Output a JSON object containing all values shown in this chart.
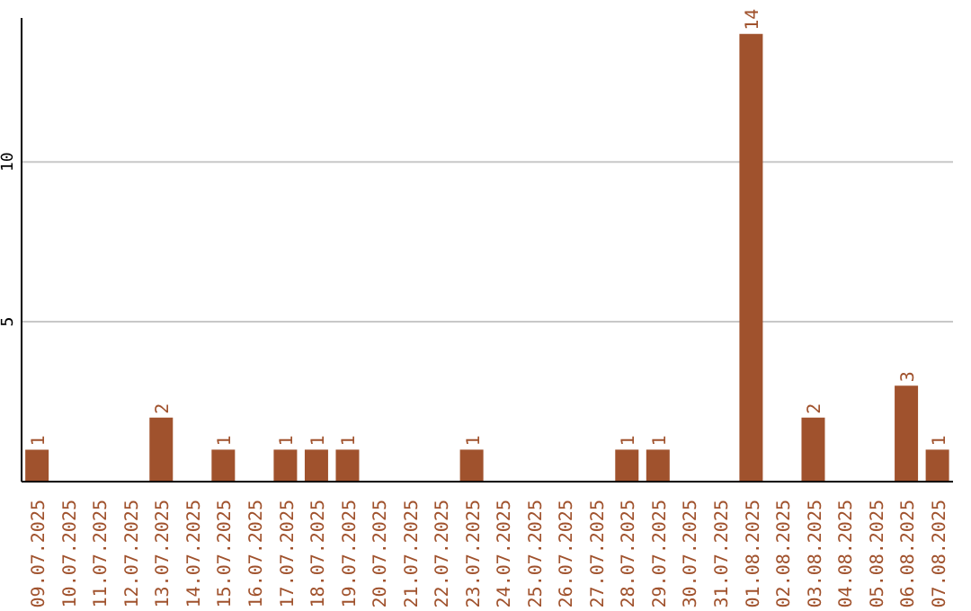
{
  "chart_data": {
    "type": "bar",
    "categories": [
      "09.07.2025",
      "10.07.2025",
      "11.07.2025",
      "12.07.2025",
      "13.07.2025",
      "14.07.2025",
      "15.07.2025",
      "16.07.2025",
      "17.07.2025",
      "18.07.2025",
      "19.07.2025",
      "20.07.2025",
      "21.07.2025",
      "22.07.2025",
      "23.07.2025",
      "24.07.2025",
      "25.07.2025",
      "26.07.2025",
      "27.07.2025",
      "28.07.2025",
      "29.07.2025",
      "30.07.2025",
      "31.07.2025",
      "01.08.2025",
      "02.08.2025",
      "03.08.2025",
      "04.08.2025",
      "05.08.2025",
      "06.08.2025",
      "07.08.2025"
    ],
    "values": [
      1,
      0,
      0,
      0,
      2,
      0,
      1,
      0,
      1,
      1,
      1,
      0,
      0,
      0,
      1,
      0,
      0,
      0,
      0,
      1,
      1,
      0,
      0,
      14,
      0,
      2,
      0,
      0,
      3,
      1
    ],
    "value_labels": [
      "1",
      null,
      null,
      null,
      "2",
      null,
      "1",
      null,
      "1",
      "1",
      "1",
      null,
      null,
      null,
      "1",
      null,
      null,
      null,
      null,
      "1",
      "1",
      null,
      null,
      "14",
      null,
      "2",
      null,
      null,
      "3",
      "1"
    ],
    "color": "#a0522d",
    "ylim": [
      0,
      14.5
    ],
    "yticks": [
      5,
      10
    ],
    "grid": "y"
  }
}
